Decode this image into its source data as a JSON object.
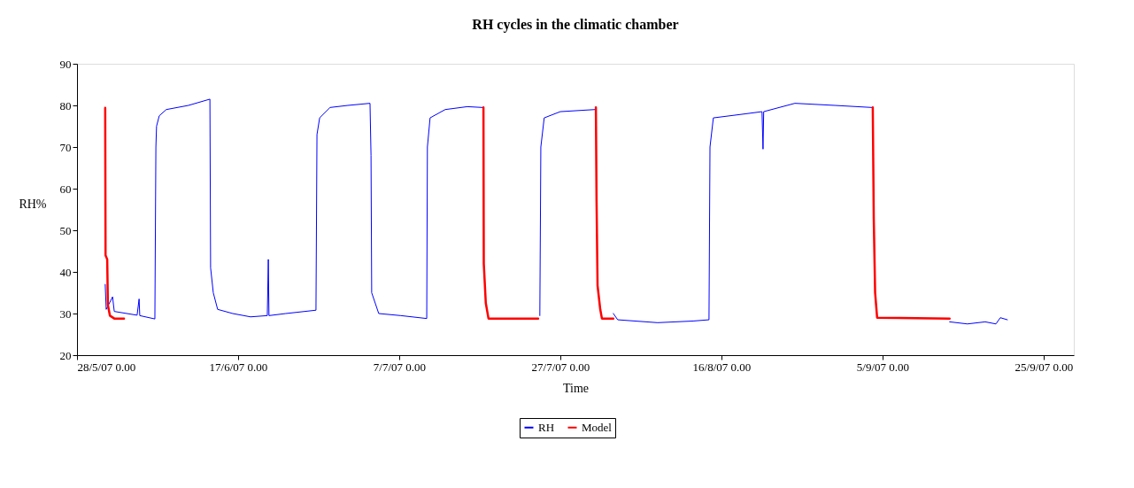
{
  "chart_data": {
    "type": "line",
    "title": "RH cycles in the climatic chamber",
    "xlabel": "Time",
    "ylabel": "RH%",
    "xlim": [
      "2007-05-28",
      "2007-09-28T18:00"
    ],
    "xticks": [
      {
        "value": "2007-05-28",
        "label": "28/5/07 0.00"
      },
      {
        "value": "2007-06-17",
        "label": "17/6/07 0.00"
      },
      {
        "value": "2007-07-07",
        "label": "7/7/07 0.00"
      },
      {
        "value": "2007-07-27",
        "label": "27/7/07 0.00"
      },
      {
        "value": "2007-08-16",
        "label": "16/8/07 0.00"
      },
      {
        "value": "2007-09-05",
        "label": "5/9/07 0.00"
      },
      {
        "value": "2007-09-25",
        "label": "25/9/07 0.00"
      }
    ],
    "ylim": [
      20,
      90
    ],
    "yticks": [
      20,
      30,
      40,
      50,
      60,
      70,
      80,
      90
    ],
    "grid": false,
    "legend": "bottom",
    "marker": "none",
    "line_style": "solid",
    "series": [
      {
        "name": "RH",
        "color": "#0000ff",
        "x": [
          "2007-05-31T12:00",
          "2007-05-31T15:00",
          "2007-06-01T10:00",
          "2007-06-01T15:00",
          "2007-06-04T11:00",
          "2007-06-04T17:00",
          "2007-06-04T19:00",
          "2007-06-06T16:00",
          "2007-06-06T19:00",
          "2007-06-06T21:00",
          "2007-06-07T05:00",
          "2007-06-08T02:00",
          "2007-06-10T20:00",
          "2007-06-13T12:00",
          "2007-06-13T14:00",
          "2007-06-13T22:00",
          "2007-06-14T11:00",
          "2007-06-16T08:00",
          "2007-06-18T13:00",
          "2007-06-20T15:00",
          "2007-06-20T18:00",
          "2007-06-20T20:00",
          "2007-06-22T22:00",
          "2007-06-26T16:00",
          "2007-06-26T19:00",
          "2007-06-27T03:00",
          "2007-06-28T10:00",
          "2007-06-30T15:00",
          "2007-07-03T09:00",
          "2007-07-03T12:00",
          "2007-07-03T14:00",
          "2007-07-04T11:00",
          "2007-07-07T05:00",
          "2007-07-10T10:00",
          "2007-07-10T12:00",
          "2007-07-10T20:00",
          "2007-07-12T17:00",
          "2007-07-15T11:00",
          "2007-07-17T08:00",
          "2007-07-20T00:00",
          "2007-07-24T06:00",
          "2007-07-24T11:00",
          "2007-07-24T14:00",
          "2007-07-25T00:00",
          "2007-07-27T00:00",
          "2007-07-31T07:00",
          "2007-08-01T00:00",
          "2007-08-02T14:00",
          "2007-08-03T03:00",
          "2007-08-08T02:00",
          "2007-08-12T12:00",
          "2007-08-14T11:00",
          "2007-08-14T14:00",
          "2007-08-15T00:00",
          "2007-08-19T02:00",
          "2007-08-21T01:00",
          "2007-08-21T04:00",
          "2007-08-21T06:00",
          "2007-08-25T03:00",
          "2007-08-30T02:00",
          "2007-09-03T16:00",
          "2007-09-08T00:00",
          "2007-09-13T08:00",
          "2007-09-15T13:00",
          "2007-09-17T18:00",
          "2007-09-19T02:00",
          "2007-09-19T15:00",
          "2007-09-20T12:00"
        ],
        "values": [
          37,
          31,
          34,
          30.5,
          29.6,
          33.5,
          29.5,
          28.7,
          70,
          75,
          77.5,
          79,
          80,
          81.5,
          41,
          35,
          31,
          30,
          29.2,
          29.5,
          43,
          29.5,
          30,
          30.8,
          73,
          77,
          79.5,
          80,
          80.5,
          68,
          35,
          30,
          29.5,
          28.8,
          70,
          77,
          79,
          79.7,
          79.5,
          null,
          null,
          29.5,
          70,
          77,
          78.5,
          79,
          null,
          30,
          28.5,
          27.8,
          28.2,
          28.5,
          70,
          77,
          78,
          78.5,
          69.5,
          78.5,
          80.5,
          80,
          79.5,
          null,
          28,
          27.5,
          28,
          27.5,
          29,
          28.5
        ]
      },
      {
        "name": "Model",
        "color": "#ff0000",
        "x": [
          "2007-05-31T12:00",
          "2007-05-31T13:00",
          "2007-05-31T18:00",
          "2007-05-31T20:00",
          "2007-06-01T02:00",
          "2007-06-01T15:00",
          "2007-06-02T20:00",
          "2007-06-20T00:00",
          "2007-07-17T11:00",
          "2007-07-17T12:00",
          "2007-07-17T18:00",
          "2007-07-18T02:00",
          "2007-07-24T06:00",
          "2007-07-28T00:00",
          "2007-07-31T10:00",
          "2007-07-31T12:00",
          "2007-07-31T15:00",
          "2007-07-31T23:00",
          "2007-08-01T04:00",
          "2007-08-02T14:00",
          "2007-08-20T00:00",
          "2007-09-03T19:00",
          "2007-09-03T22:00",
          "2007-09-04T02:00",
          "2007-09-04T08:00",
          "2007-09-13T08:00"
        ],
        "values": [
          79.4,
          44,
          43,
          32,
          29.5,
          28.8,
          28.8,
          null,
          79.5,
          42,
          32.5,
          28.8,
          28.8,
          null,
          79.5,
          57,
          36.7,
          31,
          28.8,
          28.8,
          null,
          79.5,
          52.7,
          35,
          29,
          28.8
        ]
      }
    ]
  }
}
